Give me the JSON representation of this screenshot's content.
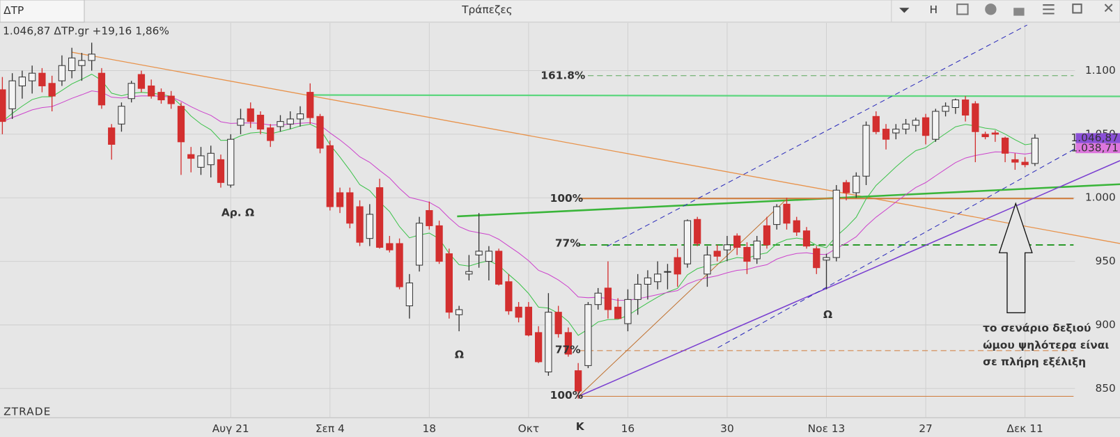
{
  "window": {
    "tab": "ΔΤΡ",
    "title": "Τράπεζες",
    "mode": "H",
    "info": "1.046,87 ΔΤΡ.gr +19,16 1,86%",
    "brand": "ZTRADE"
  },
  "chart_data": {
    "type": "candlestick",
    "categories": [
      null,
      null,
      null,
      null,
      null,
      null,
      null,
      null,
      null,
      null,
      null,
      null,
      null,
      null,
      null,
      null,
      null,
      null,
      null,
      null,
      null,
      null,
      null,
      "Αυγ 21",
      null,
      null,
      null,
      null,
      null,
      null,
      null,
      null,
      null,
      "Σεπ 4",
      null,
      null,
      null,
      null,
      null,
      null,
      null,
      null,
      null,
      "18",
      null,
      null,
      null,
      null,
      null,
      null,
      null,
      null,
      null,
      "Οκτ",
      null,
      null,
      null,
      null,
      null,
      null,
      null,
      null,
      null,
      "16",
      null,
      null,
      null,
      null,
      null,
      null,
      null,
      null,
      null,
      "30",
      null,
      null,
      null,
      null,
      null,
      null,
      null,
      null,
      null,
      "Νοε 13",
      null,
      null,
      null,
      null,
      null,
      null,
      null,
      null,
      null,
      "27",
      null,
      null,
      null,
      null,
      null,
      null,
      null,
      null,
      null,
      "Δεκ 11",
      null
    ],
    "open": [
      1085,
      1070,
      1088,
      1092,
      1098,
      1090,
      1092,
      1100,
      1104,
      1108,
      1098,
      1055,
      1058,
      1078,
      1097,
      1088,
      1083,
      1080,
      1072,
      1034,
      1024,
      1026,
      1030,
      1010,
      1057,
      1070,
      1065,
      1055,
      1056,
      1058,
      1062,
      1083,
      1064,
      1041,
      1004,
      1004,
      993,
      968,
      1008,
      964,
      964,
      915,
      947,
      990,
      978,
      956,
      908,
      940,
      955,
      950,
      958,
      934,
      914,
      914,
      894,
      863,
      910,
      894,
      864,
      868,
      916,
      929,
      914,
      901,
      920,
      932,
      934,
      942,
      953,
      948,
      983,
      940,
      958,
      959,
      970,
      961,
      952,
      978,
      979,
      995,
      982,
      974,
      960,
      951,
      953,
      1012,
      1004,
      1017,
      1064,
      1054,
      1051,
      1054,
      1057,
      1063,
      1046,
      1068,
      1071,
      1077,
      1074,
      1050,
      1051,
      1047,
      1030,
      1028,
      1027
    ],
    "high": [
      1095,
      1098,
      1100,
      1104,
      1102,
      1096,
      1112,
      1118,
      1114,
      1122,
      1102,
      1058,
      1075,
      1092,
      1100,
      1093,
      1086,
      1084,
      1075,
      1040,
      1040,
      1041,
      1034,
      1050,
      1070,
      1075,
      1068,
      1058,
      1065,
      1068,
      1072,
      1090,
      1066,
      1045,
      1008,
      1008,
      998,
      995,
      1015,
      970,
      968,
      940,
      985,
      997,
      982,
      960,
      915,
      955,
      988,
      962,
      960,
      940,
      918,
      918,
      899,
      925,
      915,
      898,
      870,
      918,
      929,
      950,
      921,
      928,
      940,
      943,
      950,
      948,
      960,
      983,
      985,
      962,
      963,
      970,
      972,
      965,
      970,
      985,
      995,
      1000,
      985,
      977,
      962,
      956,
      1010,
      1014,
      1020,
      1060,
      1068,
      1058,
      1058,
      1062,
      1063,
      1066,
      1070,
      1075,
      1078,
      1080,
      1076,
      1052,
      1053,
      1048,
      1035,
      1032,
      1050
    ],
    "low": [
      1050,
      1062,
      1078,
      1082,
      1083,
      1068,
      1088,
      1094,
      1092,
      1100,
      1070,
      1030,
      1052,
      1075,
      1083,
      1078,
      1074,
      1070,
      1018,
      1020,
      1018,
      1016,
      1008,
      1008,
      1050,
      1055,
      1050,
      1040,
      1052,
      1054,
      1056,
      1058,
      1035,
      990,
      988,
      976,
      962,
      962,
      960,
      957,
      928,
      905,
      942,
      975,
      948,
      905,
      895,
      935,
      945,
      935,
      931,
      908,
      902,
      891,
      870,
      860,
      890,
      875,
      842,
      866,
      912,
      905,
      905,
      895,
      908,
      920,
      928,
      928,
      930,
      945,
      962,
      930,
      950,
      950,
      955,
      940,
      948,
      960,
      975,
      975,
      970,
      960,
      940,
      928,
      950,
      998,
      1000,
      1010,
      1050,
      1038,
      1046,
      1050,
      1052,
      1042,
      1044,
      1064,
      1066,
      1060,
      1028,
      1046,
      1044,
      1028,
      1022,
      1024,
      1025
    ],
    "close": [
      1060,
      1092,
      1095,
      1098,
      1088,
      1080,
      1104,
      1110,
      1108,
      1113,
      1073,
      1042,
      1072,
      1090,
      1086,
      1080,
      1077,
      1074,
      1044,
      1031,
      1033,
      1035,
      1012,
      1046,
      1062,
      1060,
      1054,
      1045,
      1060,
      1062,
      1066,
      1063,
      1039,
      993,
      993,
      980,
      965,
      987,
      961,
      959,
      930,
      933,
      980,
      978,
      950,
      910,
      912,
      942,
      958,
      958,
      932,
      911,
      906,
      892,
      871,
      910,
      893,
      877,
      848,
      916,
      925,
      912,
      905,
      920,
      932,
      937,
      940,
      942,
      940,
      982,
      964,
      955,
      954,
      963,
      961,
      950,
      966,
      963,
      993,
      980,
      973,
      962,
      945,
      953,
      1006,
      1004,
      1017,
      1057,
      1052,
      1046,
      1054,
      1058,
      1061,
      1049,
      1068,
      1072,
      1077,
      1065,
      1052,
      1048,
      1050,
      1035,
      1028,
      1026,
      1046.87
    ],
    "up_color": "#f4f4f4",
    "down_color": "#d32f2f",
    "ylim": [
      827,
      1137.6
    ],
    "yticks": [
      850,
      900,
      950,
      {
        "value": 1000,
        "label": "1.000"
      },
      {
        "value": 1050,
        "label": "1.050"
      },
      {
        "value": 1100,
        "label": "1.100"
      }
    ],
    "grid": true,
    "price_labels": [
      "1.046,87",
      "1.038,71"
    ],
    "annotations": [
      "Αρ. Ω",
      "Ω",
      "Κ",
      "Ω",
      "161.8%",
      "100%",
      "77%",
      "77%",
      "100%",
      "το σενάριο δεξιού",
      "ώμου ψηλότερα είναι",
      "σε πλήρη εξέλιξη"
    ]
  }
}
